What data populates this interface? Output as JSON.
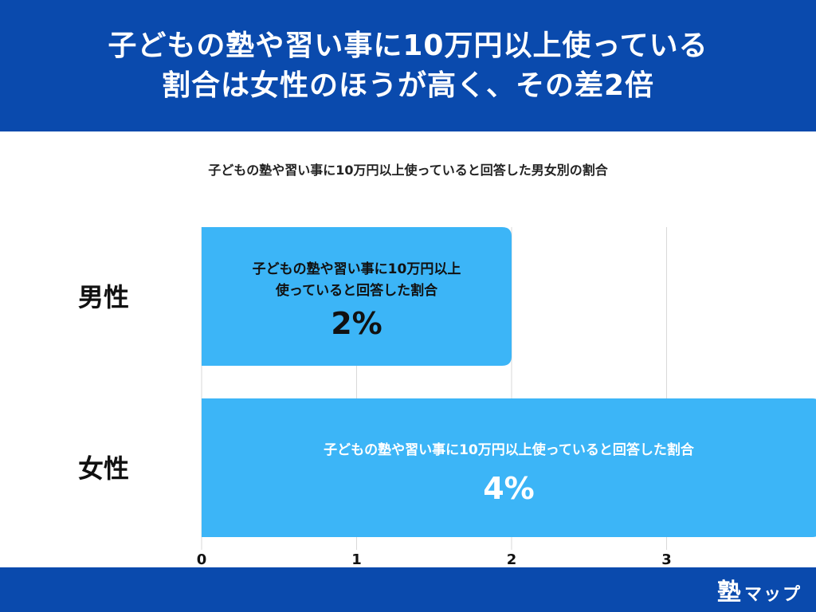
{
  "header": {
    "title_line1": "子どもの塾や習い事に10万円以上使っている",
    "title_line2": "割合は女性のほうが高く、その差2倍"
  },
  "chart_data": {
    "type": "bar",
    "orientation": "horizontal",
    "title": "子どもの塾や習い事に10万円以上使っていると回答した男女別の割合",
    "categories": [
      "男性",
      "女性"
    ],
    "series": [
      {
        "name": "子どもの塾や習い事に10万円以上使っていると回答した割合",
        "values": [
          2,
          4
        ]
      }
    ],
    "value_labels": [
      "2%",
      "4%"
    ],
    "bar_labels": [
      [
        "子どもの塾や習い事に10万円以上",
        "使っていると回答した割合"
      ],
      [
        "子どもの塾や習い事に10万円以上使っていると回答した割合"
      ]
    ],
    "xlim": [
      0,
      4
    ],
    "xticks": [
      0,
      1,
      2,
      3
    ],
    "xtick_labels": [
      "0",
      "1",
      "2",
      "3"
    ],
    "grid": true,
    "colors": {
      "bar": "#3cb5f7",
      "grid": "#d9d9d9"
    }
  },
  "footer": {
    "logo_kanji": "塾",
    "logo_kana": "マップ"
  }
}
